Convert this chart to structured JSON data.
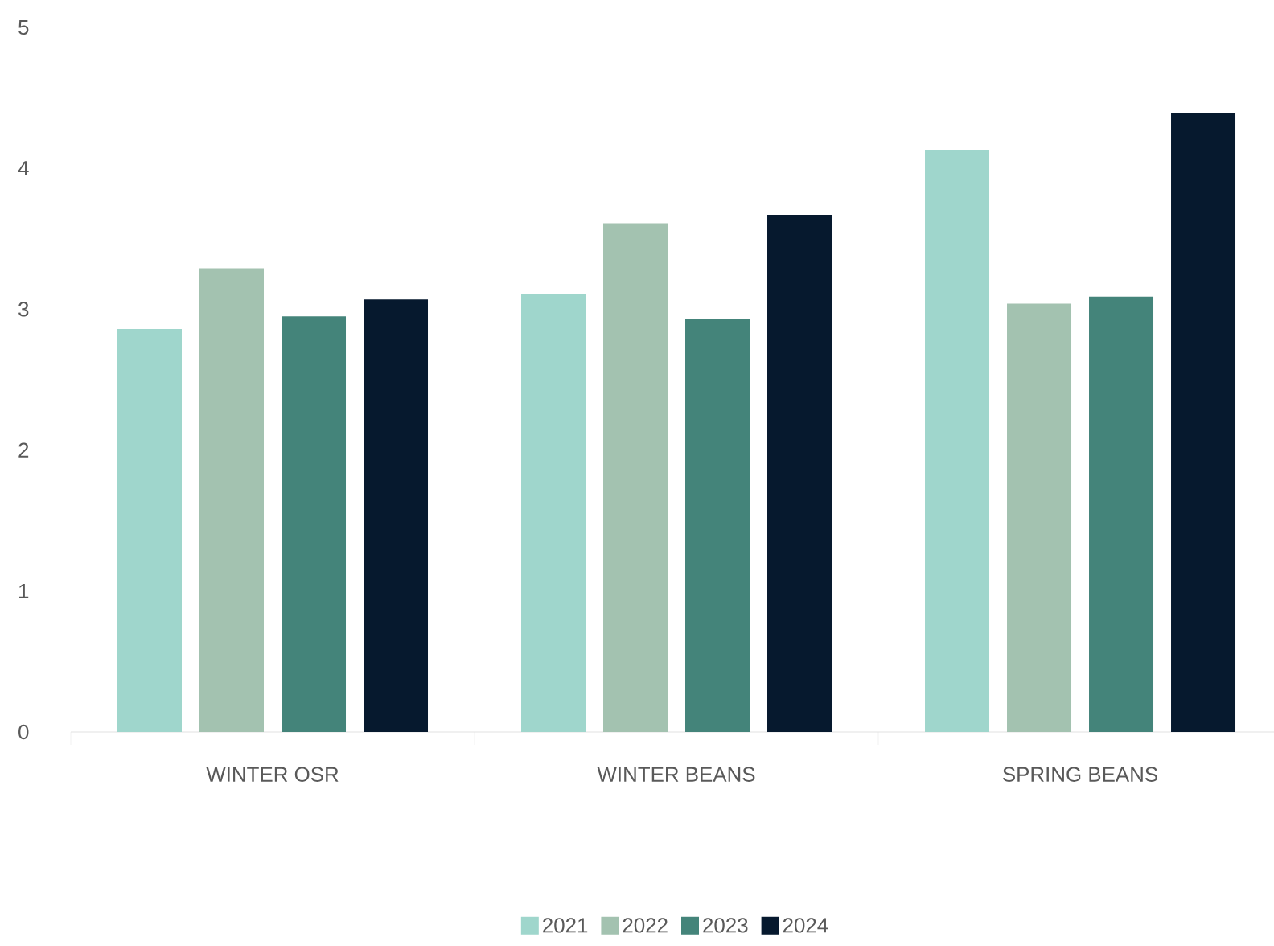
{
  "chart_data": {
    "type": "bar",
    "categories": [
      "WINTER OSR",
      "WINTER BEANS",
      "SPRING BEANS"
    ],
    "series": [
      {
        "name": "2021",
        "color": "#9fd6cc",
        "values": [
          2.86,
          3.11,
          4.13
        ]
      },
      {
        "name": "2022",
        "color": "#a3c2b0",
        "values": [
          3.29,
          3.61,
          3.04
        ]
      },
      {
        "name": "2023",
        "color": "#44847a",
        "values": [
          2.95,
          2.93,
          3.09
        ]
      },
      {
        "name": "2024",
        "color": "#06192e",
        "values": [
          3.07,
          3.67,
          4.39
        ]
      }
    ],
    "ylim": [
      0,
      5
    ],
    "yticks": [
      0,
      1,
      2,
      3,
      4,
      5
    ],
    "legend": "bottom"
  }
}
